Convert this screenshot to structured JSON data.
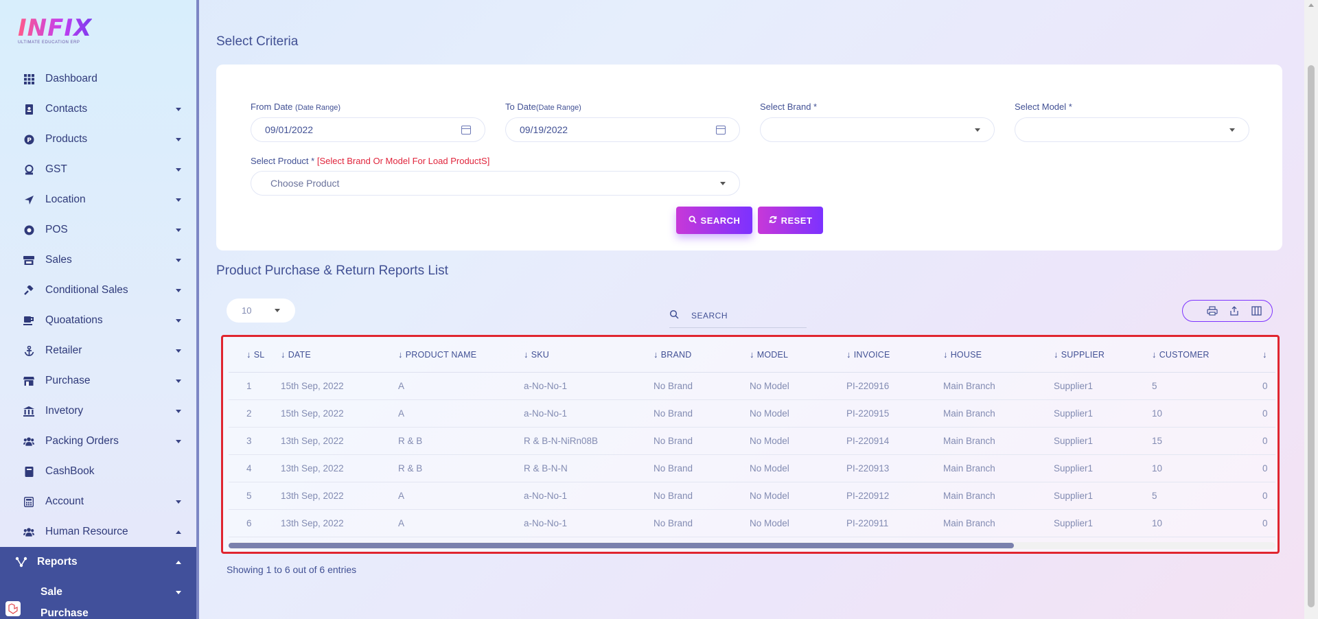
{
  "app": {
    "logo_text": "INFIX",
    "logo_tagline": "ULTIMATE EDUCATION ERP"
  },
  "sidebar": {
    "items": [
      {
        "label": "Dashboard",
        "icon": "grid-icon",
        "caret": false
      },
      {
        "label": "Contacts",
        "icon": "address-book-icon",
        "caret": true
      },
      {
        "label": "Products",
        "icon": "product-icon",
        "caret": true
      },
      {
        "label": "GST",
        "icon": "gst-icon",
        "caret": true
      },
      {
        "label": "Location",
        "icon": "location-arrow-icon",
        "caret": true
      },
      {
        "label": "POS",
        "icon": "pos-icon",
        "caret": true
      },
      {
        "label": "Sales",
        "icon": "store-icon",
        "caret": true
      },
      {
        "label": "Conditional Sales",
        "icon": "gavel-icon",
        "caret": true
      },
      {
        "label": "Quoatations",
        "icon": "mug-icon",
        "caret": true
      },
      {
        "label": "Retailer",
        "icon": "anchor-icon",
        "caret": true
      },
      {
        "label": "Purchase",
        "icon": "shop-icon",
        "caret": true
      },
      {
        "label": "Invetory",
        "icon": "bank-icon",
        "caret": true
      },
      {
        "label": "Packing Orders",
        "icon": "users-icon",
        "caret": true
      },
      {
        "label": "CashBook",
        "icon": "book-icon",
        "caret": false
      },
      {
        "label": "Account",
        "icon": "calculator-icon",
        "caret": true
      },
      {
        "label": "Human Resource",
        "icon": "users-icon",
        "caret": "up"
      }
    ],
    "active": {
      "label": "Reports",
      "sub_label": "Sale",
      "next_sub_label": "Purchase"
    }
  },
  "criteria": {
    "title": "Select Criteria",
    "from_date_label": "From Date",
    "from_date_hint": "(Date Range)",
    "from_date_value": "09/01/2022",
    "to_date_label": "To Date",
    "to_date_hint": "(Date Range)",
    "to_date_value": "09/19/2022",
    "brand_label": "Select Brand *",
    "model_label": "Select Model *",
    "product_label": "Select Product *",
    "product_hint": "[Select Brand Or Model For Load ProductS]",
    "product_placeholder": "Choose Product",
    "search_button": "SEARCH",
    "reset_button": "RESET"
  },
  "list": {
    "title": "Product Purchase & Return Reports List",
    "page_length": "10",
    "search_placeholder": "SEARCH",
    "info": "Showing 1 to 6 out of 6 entries",
    "columns": [
      "SL",
      "DATE",
      "PRODUCT NAME",
      "SKU",
      "BRAND",
      "MODEL",
      "INVOICE",
      "HOUSE",
      "SUPPLIER",
      "CUSTOMER",
      ""
    ],
    "rows": [
      [
        "1",
        "15th Sep, 2022",
        "A",
        "a-No-No-1",
        "No Brand",
        "No Model",
        "PI-220916",
        "Main Branch",
        "Supplier1",
        "5",
        "0"
      ],
      [
        "2",
        "15th Sep, 2022",
        "A",
        "a-No-No-1",
        "No Brand",
        "No Model",
        "PI-220915",
        "Main Branch",
        "Supplier1",
        "10",
        "0"
      ],
      [
        "3",
        "13th Sep, 2022",
        "R & B",
        "R & B-N-NiRn08B",
        "No Brand",
        "No Model",
        "PI-220914",
        "Main Branch",
        "Supplier1",
        "15",
        "0"
      ],
      [
        "4",
        "13th Sep, 2022",
        "R & B",
        "R & B-N-N",
        "No Brand",
        "No Model",
        "PI-220913",
        "Main Branch",
        "Supplier1",
        "10",
        "0"
      ],
      [
        "5",
        "13th Sep, 2022",
        "A",
        "a-No-No-1",
        "No Brand",
        "No Model",
        "PI-220912",
        "Main Branch",
        "Supplier1",
        "5",
        "0"
      ],
      [
        "6",
        "13th Sep, 2022",
        "A",
        "a-No-No-1",
        "No Brand",
        "No Model",
        "PI-220911",
        "Main Branch",
        "Supplier1",
        "10",
        "0"
      ]
    ]
  }
}
